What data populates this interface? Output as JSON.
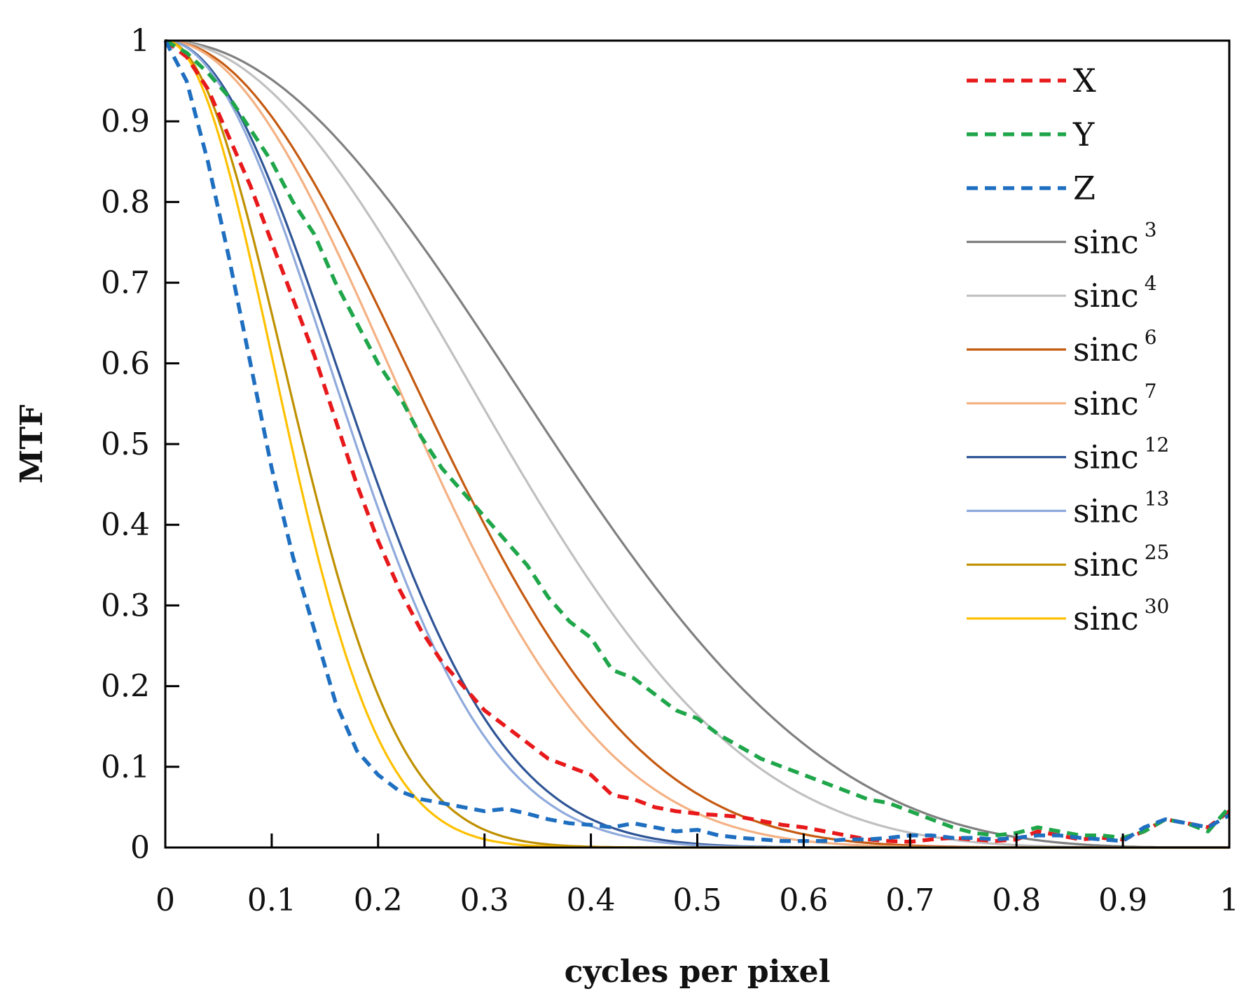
{
  "chart_data": {
    "type": "line",
    "xlabel": "cycles per pixel",
    "ylabel": "MTF",
    "xlim": [
      0,
      1
    ],
    "ylim": [
      0,
      1
    ],
    "xticks": [
      "0",
      "0.1",
      "0.2",
      "0.3",
      "0.4",
      "0.5",
      "0.6",
      "0.7",
      "0.8",
      "0.9",
      "1"
    ],
    "yticks": [
      "0",
      "0.1",
      "0.2",
      "0.3",
      "0.4",
      "0.5",
      "0.6",
      "0.7",
      "0.8",
      "0.9",
      "1"
    ],
    "grid": false,
    "legend_position": "top-right",
    "series": [
      {
        "name": "X",
        "base": "",
        "exponent": "",
        "color": "#e8191b",
        "dashed": true,
        "x": [
          0,
          0.02,
          0.04,
          0.06,
          0.08,
          0.1,
          0.12,
          0.14,
          0.16,
          0.18,
          0.2,
          0.22,
          0.24,
          0.26,
          0.28,
          0.3,
          0.32,
          0.34,
          0.36,
          0.38,
          0.4,
          0.42,
          0.44,
          0.46,
          0.48,
          0.5,
          0.52,
          0.54,
          0.56,
          0.58,
          0.6,
          0.62,
          0.64,
          0.66,
          0.68,
          0.7,
          0.72,
          0.74,
          0.76,
          0.78,
          0.8,
          0.82,
          0.84,
          0.86,
          0.88,
          0.9,
          0.92,
          0.94,
          0.96,
          0.98,
          1.0
        ],
        "y": [
          1.0,
          0.98,
          0.94,
          0.88,
          0.82,
          0.75,
          0.68,
          0.61,
          0.53,
          0.45,
          0.38,
          0.32,
          0.27,
          0.23,
          0.2,
          0.17,
          0.15,
          0.13,
          0.11,
          0.1,
          0.09,
          0.065,
          0.06,
          0.05,
          0.045,
          0.042,
          0.04,
          0.038,
          0.033,
          0.028,
          0.025,
          0.02,
          0.015,
          0.01,
          0.008,
          0.007,
          0.01,
          0.012,
          0.01,
          0.008,
          0.01,
          0.02,
          0.015,
          0.01,
          0.012,
          0.01,
          0.02,
          0.035,
          0.03,
          0.025,
          0.045
        ]
      },
      {
        "name": "Y",
        "base": "",
        "exponent": "",
        "color": "#1fa64a",
        "dashed": true,
        "x": [
          0,
          0.02,
          0.04,
          0.06,
          0.08,
          0.1,
          0.12,
          0.14,
          0.16,
          0.18,
          0.2,
          0.22,
          0.24,
          0.26,
          0.28,
          0.3,
          0.32,
          0.34,
          0.36,
          0.38,
          0.4,
          0.42,
          0.44,
          0.46,
          0.48,
          0.5,
          0.52,
          0.54,
          0.56,
          0.58,
          0.6,
          0.62,
          0.64,
          0.66,
          0.68,
          0.7,
          0.72,
          0.74,
          0.76,
          0.78,
          0.8,
          0.82,
          0.84,
          0.86,
          0.88,
          0.9,
          0.92,
          0.94,
          0.96,
          0.98,
          1.0
        ],
        "y": [
          1.0,
          0.985,
          0.96,
          0.93,
          0.89,
          0.85,
          0.8,
          0.76,
          0.7,
          0.65,
          0.6,
          0.56,
          0.51,
          0.47,
          0.44,
          0.41,
          0.38,
          0.35,
          0.31,
          0.28,
          0.26,
          0.22,
          0.21,
          0.19,
          0.17,
          0.16,
          0.14,
          0.125,
          0.11,
          0.1,
          0.09,
          0.08,
          0.07,
          0.06,
          0.055,
          0.045,
          0.035,
          0.025,
          0.018,
          0.015,
          0.018,
          0.025,
          0.02,
          0.015,
          0.015,
          0.012,
          0.02,
          0.035,
          0.03,
          0.02,
          0.05
        ]
      },
      {
        "name": "Z",
        "base": "",
        "exponent": "",
        "color": "#1f6fc1",
        "dashed": true,
        "x": [
          0,
          0.02,
          0.04,
          0.06,
          0.08,
          0.1,
          0.12,
          0.14,
          0.16,
          0.18,
          0.2,
          0.22,
          0.24,
          0.26,
          0.28,
          0.3,
          0.32,
          0.34,
          0.36,
          0.38,
          0.4,
          0.42,
          0.44,
          0.46,
          0.48,
          0.5,
          0.52,
          0.54,
          0.56,
          0.58,
          0.6,
          0.62,
          0.64,
          0.66,
          0.68,
          0.7,
          0.72,
          0.74,
          0.76,
          0.78,
          0.8,
          0.82,
          0.84,
          0.86,
          0.88,
          0.9,
          0.92,
          0.94,
          0.96,
          0.98,
          1.0
        ],
        "y": [
          1.0,
          0.95,
          0.85,
          0.73,
          0.6,
          0.47,
          0.36,
          0.27,
          0.18,
          0.12,
          0.09,
          0.07,
          0.06,
          0.055,
          0.05,
          0.045,
          0.048,
          0.042,
          0.035,
          0.03,
          0.028,
          0.025,
          0.03,
          0.025,
          0.02,
          0.022,
          0.015,
          0.012,
          0.01,
          0.008,
          0.008,
          0.008,
          0.01,
          0.01,
          0.012,
          0.015,
          0.015,
          0.012,
          0.012,
          0.01,
          0.012,
          0.015,
          0.015,
          0.012,
          0.01,
          0.008,
          0.025,
          0.035,
          0.03,
          0.025,
          0.04
        ]
      },
      {
        "name": "sinc3",
        "base": "sinc",
        "exponent": "3",
        "color": "#808080",
        "dashed": false,
        "function": "sinc",
        "power": 3,
        "x": [
          0,
          1
        ],
        "y": [
          1,
          0
        ]
      },
      {
        "name": "sinc4",
        "base": "sinc",
        "exponent": "4",
        "color": "#c0c0c0",
        "dashed": false,
        "function": "sinc",
        "power": 4,
        "x": [
          0,
          1
        ],
        "y": [
          1,
          0
        ]
      },
      {
        "name": "sinc6",
        "base": "sinc",
        "exponent": "6",
        "color": "#c55a11",
        "dashed": false,
        "function": "sinc",
        "power": 6,
        "x": [
          0,
          1
        ],
        "y": [
          1,
          0
        ]
      },
      {
        "name": "sinc7",
        "base": "sinc",
        "exponent": "7",
        "color": "#f4b183",
        "dashed": false,
        "function": "sinc",
        "power": 7,
        "x": [
          0,
          1
        ],
        "y": [
          1,
          0
        ]
      },
      {
        "name": "sinc12",
        "base": "sinc",
        "exponent": "12",
        "color": "#2f5597",
        "dashed": false,
        "function": "sinc",
        "power": 12,
        "x": [
          0,
          1
        ],
        "y": [
          1,
          0
        ]
      },
      {
        "name": "sinc13",
        "base": "sinc",
        "exponent": "13",
        "color": "#8faadc",
        "dashed": false,
        "function": "sinc",
        "power": 13,
        "x": [
          0,
          1
        ],
        "y": [
          1,
          0
        ]
      },
      {
        "name": "sinc25",
        "base": "sinc",
        "exponent": "25",
        "color": "#bf9000",
        "dashed": false,
        "function": "sinc",
        "power": 25,
        "x": [
          0,
          1
        ],
        "y": [
          1,
          0
        ]
      },
      {
        "name": "sinc30",
        "base": "sinc",
        "exponent": "30",
        "color": "#ffc000",
        "dashed": false,
        "function": "sinc",
        "power": 30,
        "x": [
          0,
          1
        ],
        "y": [
          1,
          0
        ]
      }
    ]
  }
}
